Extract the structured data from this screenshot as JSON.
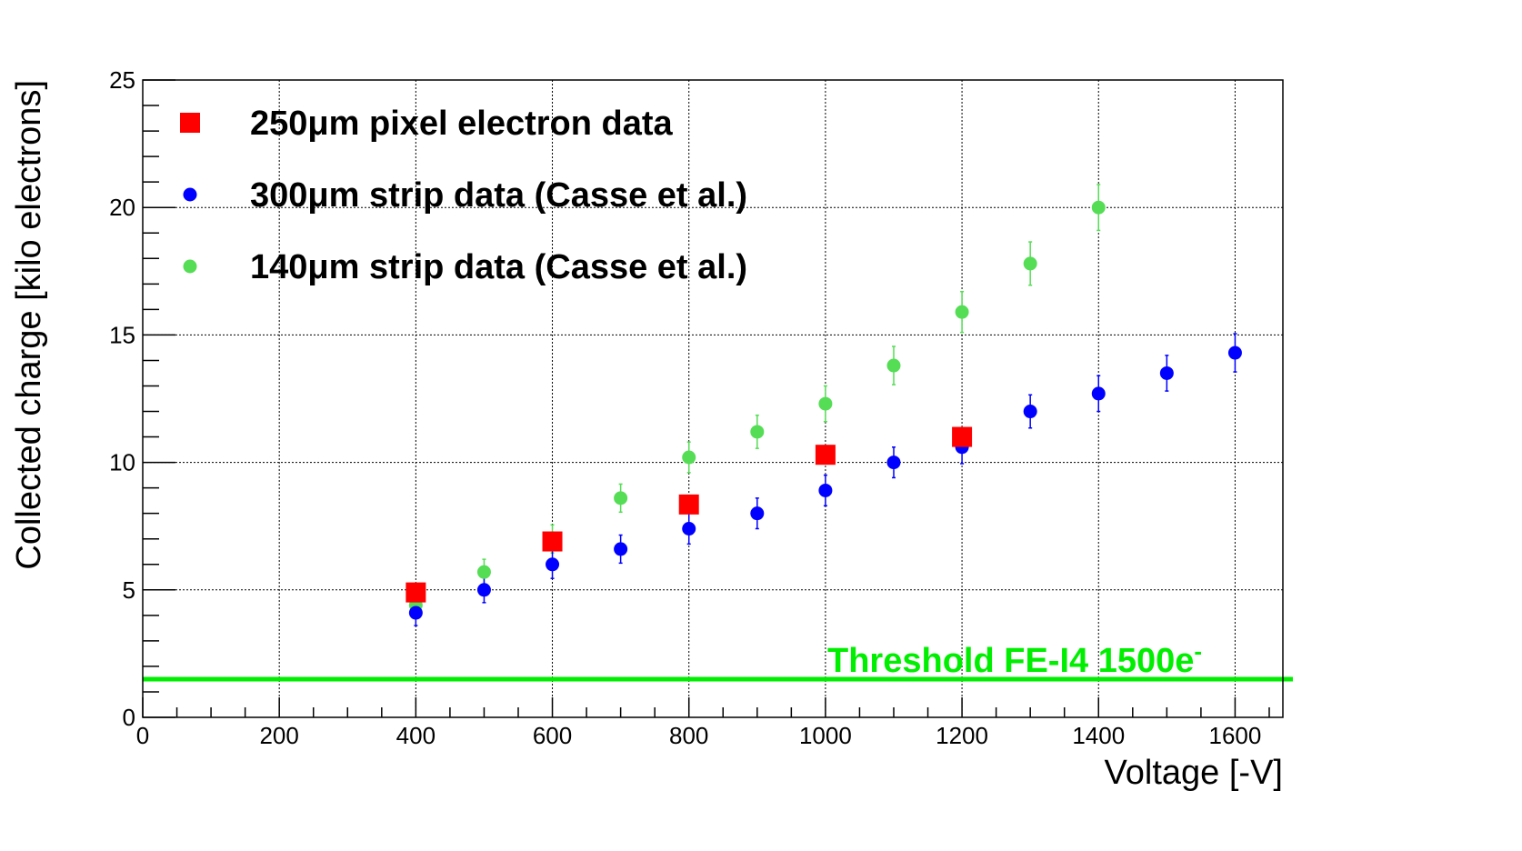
{
  "chart_data": {
    "type": "scatter",
    "xlabel": "Voltage [-V]",
    "ylabel": "Collected charge [kilo electrons]",
    "xlim": [
      0,
      1670
    ],
    "ylim": [
      0,
      25
    ],
    "x_ticks": [
      0,
      200,
      400,
      600,
      800,
      1000,
      1200,
      1400,
      1600
    ],
    "y_ticks": [
      0,
      5,
      10,
      15,
      20,
      25
    ],
    "grid": true,
    "legend_position": "top-left",
    "series": [
      {
        "name": "250μm pixel electron data",
        "marker": "square",
        "color": "#ff0000",
        "x": [
          400,
          600,
          800,
          1000,
          1200
        ],
        "y": [
          4.9,
          6.9,
          8.35,
          10.3,
          11.0
        ],
        "yerr": [
          0,
          0,
          0,
          0,
          0
        ]
      },
      {
        "name": "300μm strip data (Casse et al.)",
        "marker": "circle",
        "color": "#0000ff",
        "x": [
          400,
          500,
          600,
          700,
          800,
          900,
          1000,
          1100,
          1200,
          1300,
          1400,
          1500,
          1600
        ],
        "y": [
          4.1,
          5.0,
          6.0,
          6.6,
          7.4,
          8.0,
          8.9,
          10.0,
          10.6,
          12.0,
          12.7,
          13.5,
          14.3
        ],
        "yerr": [
          0.5,
          0.5,
          0.55,
          0.55,
          0.6,
          0.6,
          0.6,
          0.6,
          0.65,
          0.65,
          0.7,
          0.7,
          0.75
        ]
      },
      {
        "name": "140μm strip data (Casse et al.)",
        "marker": "circle",
        "color": "#55dd55",
        "x": [
          400,
          500,
          600,
          700,
          800,
          900,
          1000,
          1100,
          1200,
          1300,
          1400
        ],
        "y": [
          4.4,
          5.7,
          7.0,
          8.6,
          10.2,
          11.2,
          12.3,
          13.8,
          15.9,
          17.8,
          20.0
        ],
        "yerr": [
          0.5,
          0.5,
          0.55,
          0.55,
          0.6,
          0.65,
          0.7,
          0.75,
          0.8,
          0.85,
          0.9
        ]
      }
    ],
    "threshold": {
      "label_main": "Threshold FE-I4 1500e",
      "label_sup": "-",
      "y": 1.5,
      "color": "#00ee00"
    }
  }
}
